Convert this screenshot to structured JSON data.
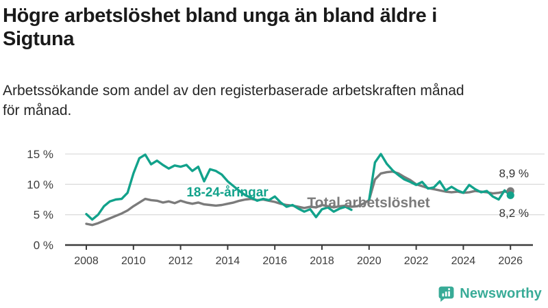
{
  "header": {
    "title_lines": [
      "Högre arbetslöshet bland unga än bland äldre i",
      "Sigtuna"
    ],
    "subtitle_lines": [
      "Arbetssökande som andel av den registerbaserade arbetskraften månad",
      "för månad."
    ]
  },
  "chart_data": {
    "type": "line",
    "title": "Högre arbetslöshet bland unga än bland äldre i Sigtuna",
    "xlabel": "",
    "ylabel": "Arbetssökande som andel av den registerbaserade arbetskraften (%)",
    "x_unit": "year (monthly series, quarterly sampled)",
    "x_start": 2008.0,
    "x_step": 0.25,
    "x_axis_ticks": [
      "2008",
      "2010",
      "2012",
      "2014",
      "2016",
      "2018",
      "2020",
      "2022",
      "2024",
      "2026"
    ],
    "ylim": [
      0,
      16
    ],
    "y_ticks": [
      {
        "value": 0,
        "label": "0 %"
      },
      {
        "value": 5,
        "label": "5 %"
      },
      {
        "value": 10,
        "label": "10 %"
      },
      {
        "value": 15,
        "label": "15 %"
      }
    ],
    "grid": "horizontal",
    "legend_position": "inline-labels",
    "series": [
      {
        "name": "Total arbetslöshet",
        "color": "#7b7b7b",
        "end_value": 8.9,
        "end_label": "8,9 %",
        "values": [
          3.5,
          3.3,
          3.6,
          4.0,
          4.4,
          4.8,
          5.2,
          5.7,
          6.4,
          7.0,
          7.6,
          7.4,
          7.3,
          7.0,
          7.2,
          6.9,
          7.3,
          7.0,
          6.8,
          7.0,
          6.7,
          6.6,
          6.5,
          6.6,
          6.8,
          7.0,
          7.3,
          7.5,
          7.6,
          7.4,
          7.5,
          7.3,
          7.1,
          6.8,
          6.6,
          6.5,
          6.3,
          6.1,
          6.3,
          6.2,
          6.6,
          6.4,
          6.2,
          6.4,
          6.5,
          6.3,
          6.4,
          6.8,
          7.4,
          10.8,
          11.8,
          12.0,
          12.1,
          11.8,
          11.2,
          10.7,
          10.0,
          9.7,
          9.4,
          9.2,
          9.0,
          8.8,
          8.7,
          8.8,
          8.6,
          8.7,
          8.9,
          8.8,
          8.7,
          8.5,
          8.6,
          8.8,
          8.9
        ]
      },
      {
        "name": "18-24-åringar",
        "color": "#12a28b",
        "end_value": 8.2,
        "end_label": "8,2 %",
        "values": [
          5.1,
          4.2,
          5.0,
          6.4,
          7.2,
          7.5,
          7.6,
          8.6,
          11.8,
          14.3,
          14.9,
          13.3,
          13.9,
          13.2,
          12.6,
          13.1,
          12.9,
          13.2,
          12.2,
          12.9,
          10.5,
          12.5,
          12.2,
          11.6,
          10.5,
          9.7,
          8.9,
          8.2,
          7.8,
          7.3,
          7.6,
          7.4,
          8.0,
          7.0,
          6.3,
          6.6,
          6.0,
          5.5,
          5.9,
          4.6,
          5.9,
          6.2,
          5.5,
          6.0,
          6.3,
          5.8,
          null,
          null,
          7.4,
          13.6,
          15.0,
          13.4,
          12.3,
          11.5,
          10.8,
          10.4,
          9.9,
          10.4,
          9.3,
          9.5,
          10.5,
          9.0,
          9.6,
          9.0,
          8.6,
          9.9,
          9.2,
          8.7,
          8.9,
          8.0,
          7.5,
          9.0,
          8.2
        ]
      }
    ]
  },
  "branding": {
    "logo_text": "Newsworthy",
    "logo_color": "#38ab97",
    "logo_icon": "speech-bubble-bar-chart-icon"
  }
}
